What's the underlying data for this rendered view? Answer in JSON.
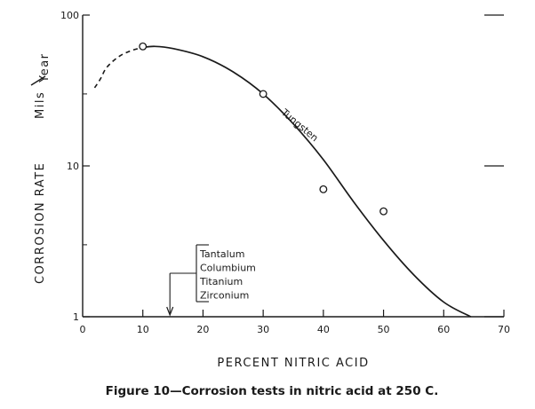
{
  "caption": "Figure 10—Corrosion tests in nitric acid at 250 C.",
  "chart_data": {
    "type": "line",
    "title": "",
    "xlabel": "PERCENT NITRIC ACID",
    "ylabel": "CORROSION RATE",
    "ylabel_units_top": "Mils",
    "ylabel_units_bottom": "Year",
    "xlim": [
      0,
      70
    ],
    "ylim": [
      1,
      100
    ],
    "yscale": "log",
    "grid": false,
    "x_ticks": [
      0,
      10,
      20,
      30,
      40,
      50,
      60,
      70
    ],
    "x_tick_labels": [
      "0",
      "10",
      "20",
      "30",
      "40",
      "50",
      "60",
      "70"
    ],
    "y_ticks": [
      1,
      10,
      100
    ],
    "y_tick_labels": [
      "1",
      "10",
      "100"
    ],
    "curve": {
      "label": "Tungsten",
      "dashed_x": [
        2,
        3,
        4,
        6,
        8,
        10
      ],
      "dashed_y": [
        33,
        38,
        45,
        53,
        58,
        61
      ],
      "solid_x": [
        10,
        12,
        15,
        20,
        25,
        30,
        35,
        40,
        45,
        50,
        55,
        60,
        64.5
      ],
      "solid_y": [
        61,
        62,
        60,
        53,
        42,
        30,
        19,
        11,
        5.8,
        3.2,
        1.9,
        1.25,
        1.0
      ]
    },
    "points": {
      "x": [
        10,
        30,
        40,
        50
      ],
      "y": [
        62,
        30,
        7,
        5
      ]
    },
    "annotation": {
      "items": [
        "Tantalum",
        "Columbium",
        "Titanium",
        "Zirconium"
      ],
      "arrow_x": 14.5
    }
  }
}
